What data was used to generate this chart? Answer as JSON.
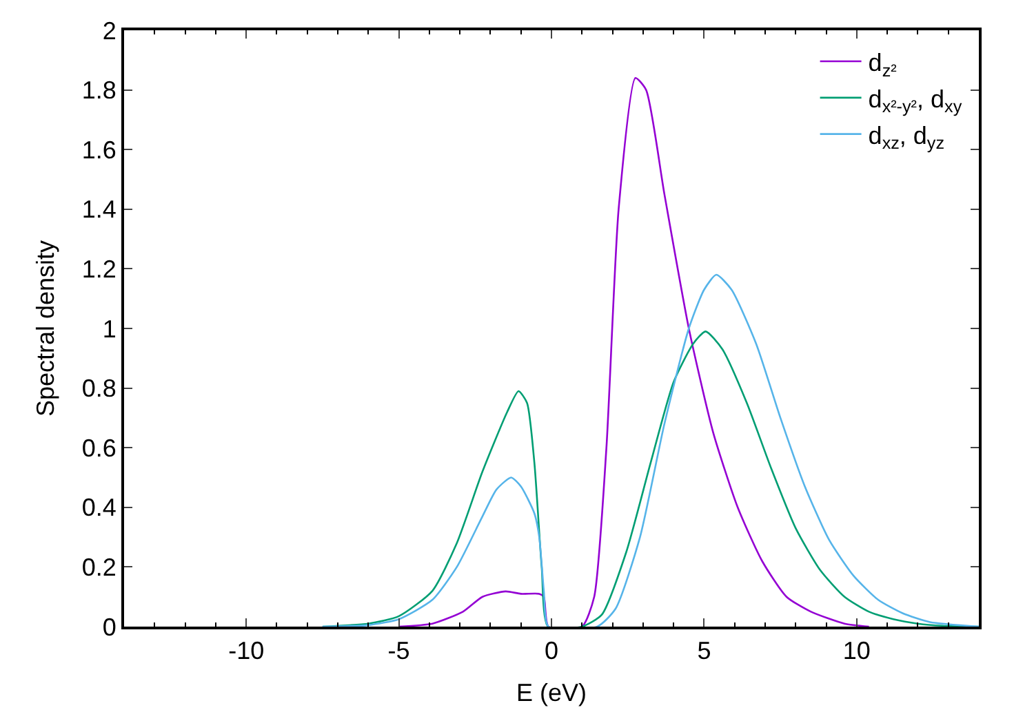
{
  "chart_data": {
    "type": "line",
    "xlabel": "E (eV)",
    "ylabel": "Spectral density",
    "xlim": [
      -14,
      14
    ],
    "xticks": [
      -10,
      -5,
      0,
      5,
      10
    ],
    "ylim": [
      0,
      2
    ],
    "yticks": [
      0,
      0.2,
      0.4,
      0.6,
      0.8,
      1,
      1.2,
      1.4,
      1.6,
      1.8,
      2
    ],
    "legend": "top right",
    "marker": "none",
    "line_style": "solid",
    "series": [
      {
        "name": "d$_{z²}$",
        "color": "#9400d3",
        "x": [
          -5,
          -3.9,
          -2.9,
          -2.26,
          -1.5,
          -1.0,
          -0.4,
          -0.25,
          -0.1,
          1.0,
          1.4,
          1.8,
          2.2,
          2.75,
          3.1,
          3.7,
          4.5,
          5.3,
          6.1,
          6.9,
          7.7,
          8.5,
          9.6,
          10.4
        ],
        "values": [
          0,
          0.01,
          0.05,
          0.1,
          0.118,
          0.11,
          0.11,
          0.1,
          0,
          0,
          0.1,
          0.6,
          1.4,
          1.84,
          1.8,
          1.45,
          1.0,
          0.65,
          0.4,
          0.22,
          0.1,
          0.05,
          0.01,
          0
        ]
      },
      {
        "name": "d$_{x²-y²}$, d$_{xy}$",
        "color": "#009e73",
        "x": [
          -7.5,
          -6,
          -5,
          -3.9,
          -3.1,
          -2.26,
          -1.45,
          -1.08,
          -0.8,
          -0.56,
          -0.32,
          -0.11,
          1.0,
          1.65,
          2.45,
          3.25,
          4.0,
          4.65,
          5.05,
          5.6,
          6.4,
          7.2,
          8.0,
          8.8,
          9.6,
          10.4,
          11.2,
          12.0,
          12.8,
          14
        ],
        "values": [
          0,
          0.01,
          0.035,
          0.12,
          0.28,
          0.52,
          0.72,
          0.79,
          0.75,
          0.55,
          0.2,
          0,
          0,
          0.04,
          0.25,
          0.55,
          0.82,
          0.95,
          0.99,
          0.93,
          0.75,
          0.53,
          0.33,
          0.19,
          0.1,
          0.05,
          0.025,
          0.01,
          0.003,
          0
        ]
      },
      {
        "name": "d$_{xz}$, d$_{yz}$",
        "color": "#56b4e9",
        "x": [
          -7.5,
          -6,
          -5,
          -3.9,
          -3.1,
          -2.26,
          -1.8,
          -1.32,
          -1.0,
          -0.56,
          -0.4,
          -0.25,
          -0.1,
          1.5,
          2.1,
          2.9,
          3.7,
          4.5,
          5.0,
          5.4,
          5.9,
          6.7,
          7.5,
          8.3,
          9.1,
          9.9,
          10.7,
          11.5,
          12.4,
          14
        ],
        "values": [
          0,
          0.005,
          0.025,
          0.09,
          0.2,
          0.37,
          0.46,
          0.5,
          0.47,
          0.38,
          0.3,
          0.12,
          0,
          0,
          0.06,
          0.3,
          0.68,
          1.0,
          1.13,
          1.18,
          1.13,
          0.95,
          0.7,
          0.47,
          0.29,
          0.17,
          0.09,
          0.045,
          0.015,
          0
        ]
      }
    ]
  }
}
